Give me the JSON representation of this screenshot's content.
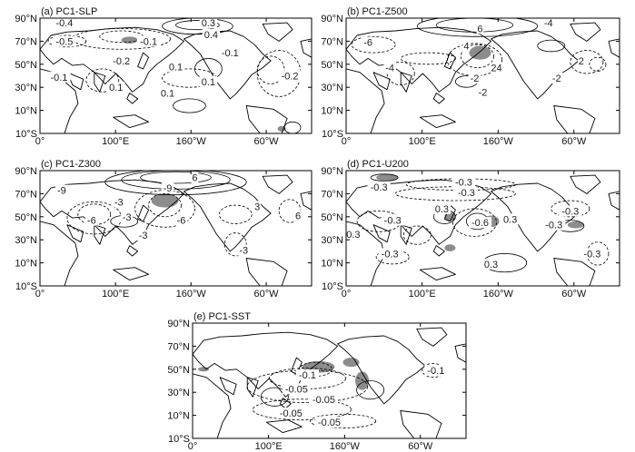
{
  "figure": {
    "panels": [
      {
        "id": "a",
        "title": "(a) PC1-SLP",
        "lat_labels": [
          "90°N",
          "70°N",
          "50°N",
          "30°N",
          "10°N",
          "10°S"
        ],
        "lon_labels": [
          "0°",
          "100°E",
          "160°W",
          "60°W"
        ],
        "contour_labels": [
          "0.3",
          "-0.4",
          "0.4",
          "-0.5",
          "-0.1",
          "-0.1",
          "-0.2",
          "0.1",
          "-0.1",
          "0.1",
          "0.1",
          "0.1",
          "-0.2"
        ]
      },
      {
        "id": "b",
        "title": "(b) PC1-Z500",
        "lat_labels": [
          "90°N",
          "70°N",
          "50°N",
          "30°N",
          "10°N",
          "10°S"
        ],
        "lon_labels": [
          "0°",
          "100°E",
          "160°W",
          "60°W"
        ],
        "contour_labels": [
          "-4",
          "6",
          "-6",
          "4",
          "-4",
          "-2",
          "24",
          "-2",
          "2",
          "-2"
        ]
      },
      {
        "id": "c",
        "title": "(c) PC1-Z300",
        "lat_labels": [
          "90°N",
          "70°N",
          "50°N",
          "30°N",
          "10°N",
          "10°S"
        ],
        "lon_labels": [
          "0°",
          "100°E",
          "160°W",
          "60°W"
        ],
        "contour_labels": [
          "6",
          "-9",
          "-9",
          "-3",
          "-6",
          "-3",
          "-6",
          "-3",
          "3",
          "6",
          "-3"
        ]
      },
      {
        "id": "d",
        "title": "(d) PC1-U200",
        "lat_labels": [
          "90°N",
          "70°N",
          "50°N",
          "30°N",
          "10°N",
          "10°S"
        ],
        "lon_labels": [
          "0°",
          "100°E",
          "160°W",
          "60°W"
        ],
        "contour_labels": [
          "-0.3",
          "-0.3",
          "-0.3",
          "-0.3",
          "0.3",
          "-0.3",
          "-0.6",
          "-0.3",
          "0.3",
          "-0.3",
          "-0.3",
          "-0.3",
          "0.3"
        ]
      },
      {
        "id": "e",
        "title": "(e) PC1-SST",
        "lat_labels": [
          "90°N",
          "70°N",
          "50°N",
          "30°N",
          "10°N",
          "10°S"
        ],
        "lon_labels": [
          "0°",
          "100°E",
          "160°W",
          "60°W"
        ],
        "contour_labels": [
          "-0.1",
          "-0.05",
          "-0.05",
          "-0.05",
          "-0.05",
          "-0.1"
        ]
      }
    ]
  }
}
